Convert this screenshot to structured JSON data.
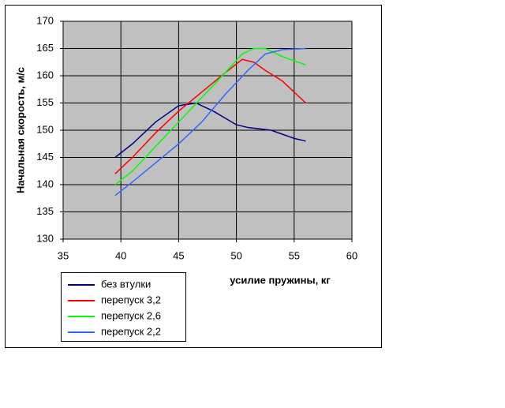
{
  "chart_data": {
    "type": "line",
    "x_label": "усилие пружины, кг",
    "y_label": "Начальная скорость, м/с",
    "xlim": [
      35,
      60
    ],
    "xticks": [
      35,
      40,
      45,
      50,
      55,
      60
    ],
    "ylim": [
      130,
      170
    ],
    "yticks": [
      130,
      135,
      140,
      145,
      150,
      155,
      160,
      165,
      170
    ],
    "grid": true,
    "legend": "bottom-left",
    "series": [
      {
        "name": "без втулки",
        "color": "#000080",
        "x": [
          39.5,
          41,
          43,
          45,
          46.5,
          48,
          50,
          51,
          53,
          55,
          56
        ],
        "values": [
          145,
          147.5,
          151.5,
          154.5,
          155,
          153.5,
          151,
          150.5,
          150,
          148.5,
          148
        ]
      },
      {
        "name": "перепуск 3,2",
        "color": "#ff0000",
        "x": [
          39.5,
          41,
          43,
          45,
          47,
          49,
          50.5,
          51.5,
          52.5,
          54,
          56
        ],
        "values": [
          142,
          145,
          149.5,
          153.5,
          157,
          160.5,
          163,
          162.5,
          161,
          159,
          155
        ]
      },
      {
        "name": "перепуск 2,6",
        "color": "#00ff00",
        "x": [
          39.5,
          41,
          43,
          45,
          47,
          49,
          50.5,
          51.5,
          52.5,
          54,
          56
        ],
        "values": [
          140,
          142.5,
          147,
          151.5,
          156,
          160.5,
          164,
          165,
          165,
          163.5,
          162
        ]
      },
      {
        "name": "перепуск 2,2",
        "color": "#3366ff",
        "x": [
          39.5,
          41,
          43,
          45,
          47,
          49,
          51,
          52.5,
          54,
          56
        ],
        "values": [
          138,
          140.5,
          144,
          147.5,
          151.5,
          156.5,
          161,
          164,
          164.8,
          165
        ]
      }
    ]
  }
}
